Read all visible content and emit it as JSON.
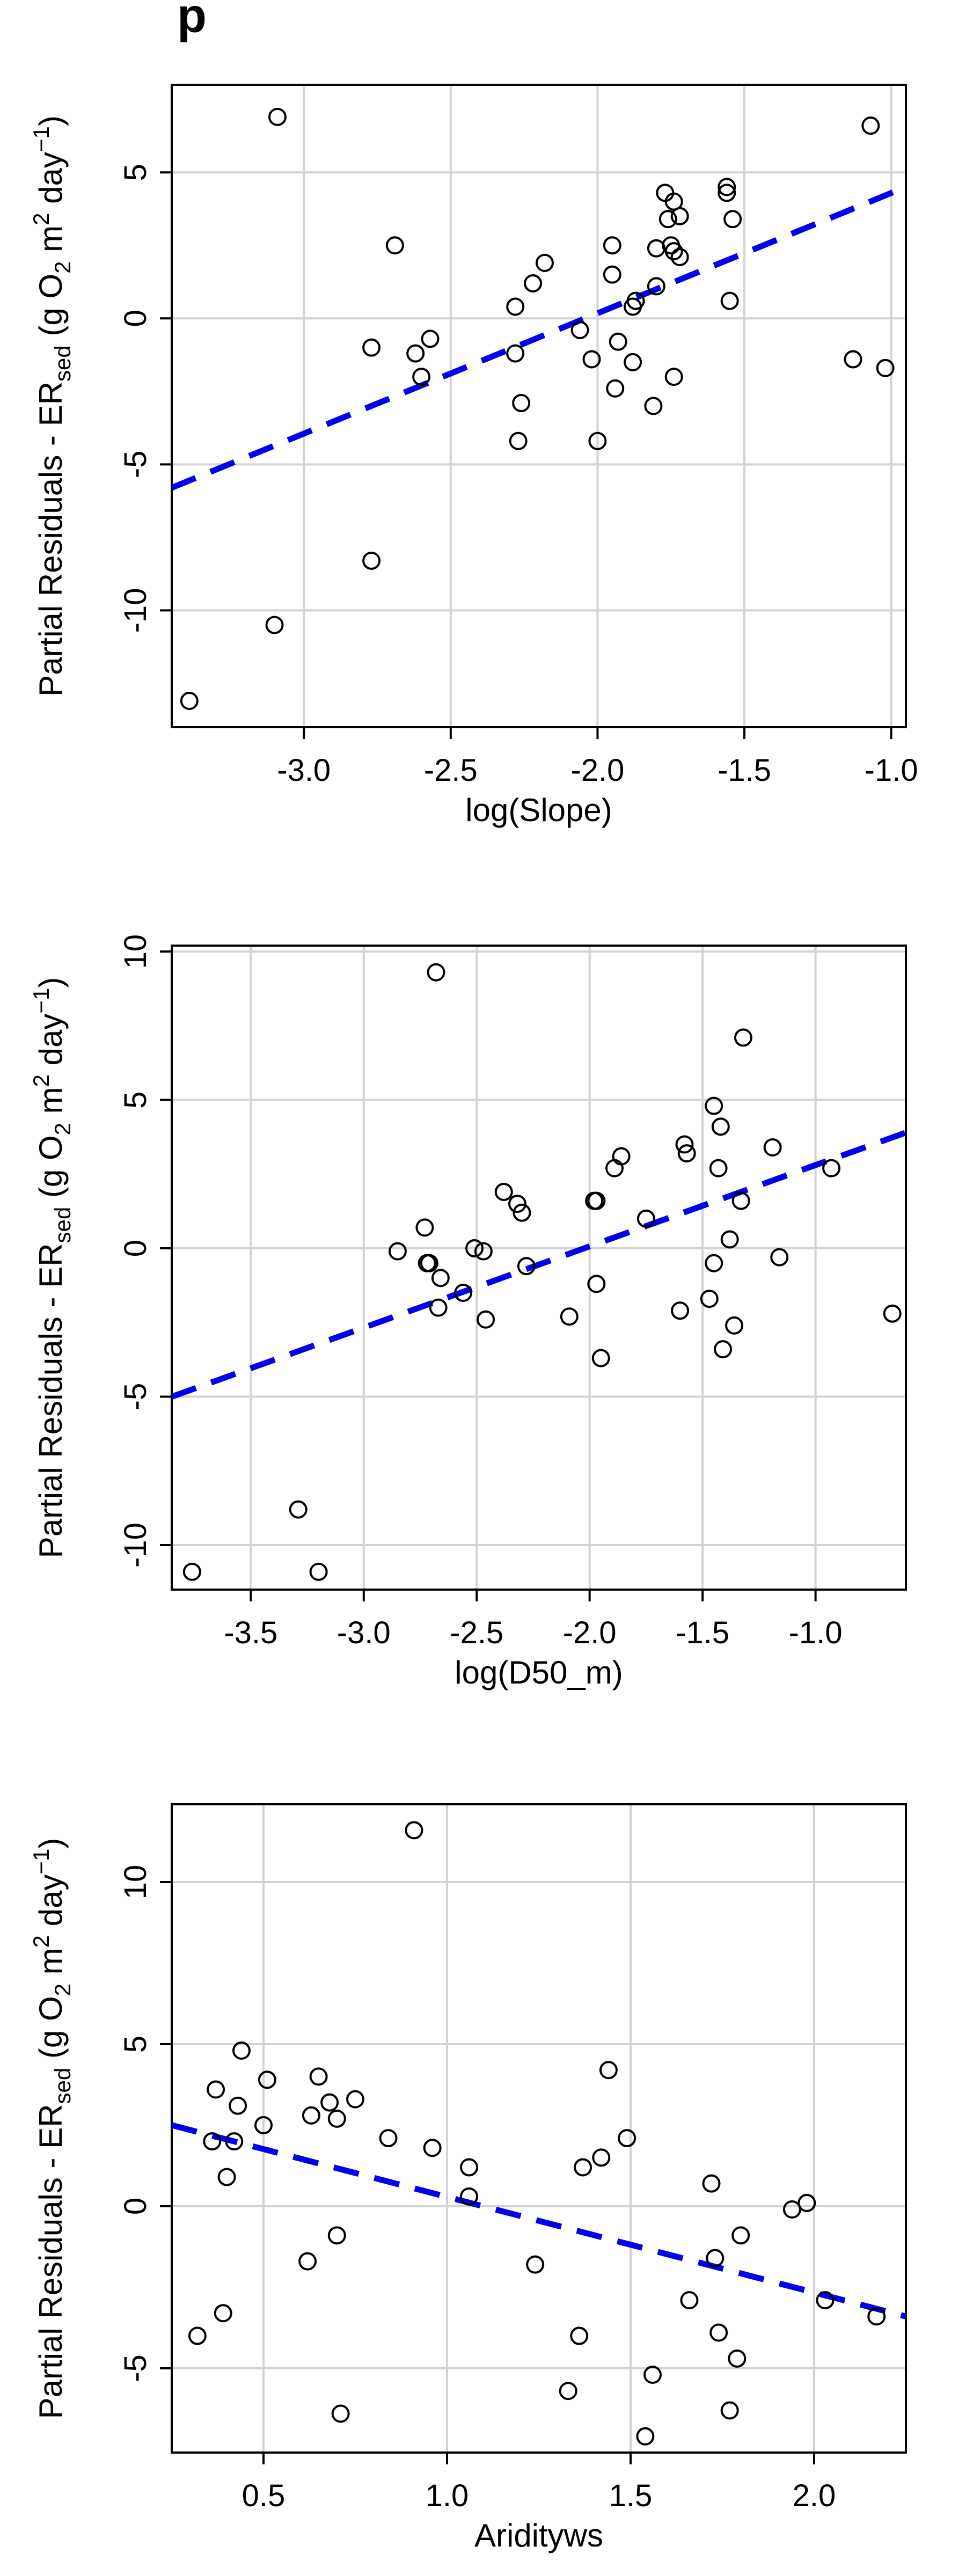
{
  "figure": {
    "title_fragment": "p"
  },
  "chart_data": [
    {
      "type": "scatter",
      "xlabel": "log(Slope)",
      "ylabel": {
        "prefix": "Partial Residuals - ER",
        "subscript": "sed",
        "units": " (g O",
        "o2_sub": "2",
        "m": " m",
        "m_sup": "2",
        "day": " day",
        "day_sup": "−1",
        "close": ")"
      },
      "xlim": [
        -3.45,
        -0.95
      ],
      "ylim": [
        -14,
        8
      ],
      "xticks": [
        -3.0,
        -2.5,
        -2.0,
        -1.5,
        -1.0
      ],
      "xtick_labels": [
        "-3.0",
        "-2.5",
        "-2.0",
        "-1.5",
        "-1.0"
      ],
      "yticks": [
        -10,
        -5,
        0,
        5
      ],
      "ytick_labels": [
        "-10",
        "-5",
        "0",
        "5"
      ],
      "grid": true,
      "points": [
        {
          "x": -3.39,
          "y": -13.1
        },
        {
          "x": -3.09,
          "y": 6.9
        },
        {
          "x": -3.1,
          "y": -10.5
        },
        {
          "x": -2.77,
          "y": -8.3
        },
        {
          "x": -2.77,
          "y": -1.0
        },
        {
          "x": -2.69,
          "y": 2.5
        },
        {
          "x": -2.62,
          "y": -1.2
        },
        {
          "x": -2.6,
          "y": -2.0
        },
        {
          "x": -2.57,
          "y": -0.7
        },
        {
          "x": -2.28,
          "y": 0.4
        },
        {
          "x": -2.28,
          "y": -1.2
        },
        {
          "x": -2.27,
          "y": -4.2
        },
        {
          "x": -2.26,
          "y": -2.9
        },
        {
          "x": -2.22,
          "y": 1.2
        },
        {
          "x": -2.18,
          "y": 1.9
        },
        {
          "x": -2.06,
          "y": -0.4
        },
        {
          "x": -2.02,
          "y": -1.4
        },
        {
          "x": -2.0,
          "y": -4.2
        },
        {
          "x": -1.95,
          "y": 2.5
        },
        {
          "x": -1.95,
          "y": 1.5
        },
        {
          "x": -1.94,
          "y": -2.4
        },
        {
          "x": -1.93,
          "y": -0.8
        },
        {
          "x": -1.88,
          "y": -1.5
        },
        {
          "x": -1.88,
          "y": 0.4
        },
        {
          "x": -1.87,
          "y": 0.6
        },
        {
          "x": -1.81,
          "y": -3.0
        },
        {
          "x": -1.8,
          "y": 1.1
        },
        {
          "x": -1.8,
          "y": 2.4
        },
        {
          "x": -1.77,
          "y": 4.3
        },
        {
          "x": -1.76,
          "y": 3.4
        },
        {
          "x": -1.75,
          "y": 2.5
        },
        {
          "x": -1.74,
          "y": 2.3
        },
        {
          "x": -1.74,
          "y": 4.0
        },
        {
          "x": -1.74,
          "y": -2.0
        },
        {
          "x": -1.72,
          "y": 3.5
        },
        {
          "x": -1.72,
          "y": 2.1
        },
        {
          "x": -1.56,
          "y": 4.5
        },
        {
          "x": -1.56,
          "y": 4.3
        },
        {
          "x": -1.55,
          "y": 0.6
        },
        {
          "x": -1.54,
          "y": 3.4
        },
        {
          "x": -1.13,
          "y": -1.4
        },
        {
          "x": -1.07,
          "y": 6.6
        },
        {
          "x": -1.02,
          "y": -1.7
        }
      ],
      "fit_line": {
        "x": [
          -3.45,
          -0.95
        ],
        "y": [
          -5.8,
          4.5
        ],
        "color": "#0000ee",
        "style": "dashed"
      }
    },
    {
      "type": "scatter",
      "xlabel": "log(D50_m)",
      "ylabel": {
        "prefix": "Partial Residuals - ER",
        "subscript": "sed",
        "units": " (g O",
        "o2_sub": "2",
        "m": " m",
        "m_sup": "2",
        "day": " day",
        "day_sup": "−1",
        "close": ")"
      },
      "xlim": [
        -3.85,
        -0.6
      ],
      "ylim": [
        -11.5,
        10.2
      ],
      "xticks": [
        -3.5,
        -3.0,
        -2.5,
        -2.0,
        -1.5,
        -1.0
      ],
      "xtick_labels": [
        "-3.5",
        "-3.0",
        "-2.5",
        "-2.0",
        "-1.5",
        "-1.0"
      ],
      "yticks": [
        -10,
        -5,
        0,
        5,
        10
      ],
      "ytick_labels": [
        "-10",
        "-5",
        "0",
        "5",
        "10"
      ],
      "grid": true,
      "points": [
        {
          "x": -3.76,
          "y": -10.9
        },
        {
          "x": -3.29,
          "y": -8.8
        },
        {
          "x": -3.2,
          "y": -10.9
        },
        {
          "x": -2.85,
          "y": -0.1
        },
        {
          "x": -2.73,
          "y": 0.7
        },
        {
          "x": -2.72,
          "y": -0.5
        },
        {
          "x": -2.71,
          "y": -0.5
        },
        {
          "x": -2.68,
          "y": 9.3
        },
        {
          "x": -2.67,
          "y": -2.0
        },
        {
          "x": -2.66,
          "y": -1.0
        },
        {
          "x": -2.56,
          "y": -1.5
        },
        {
          "x": -2.51,
          "y": 0.0
        },
        {
          "x": -2.47,
          "y": -0.1
        },
        {
          "x": -2.46,
          "y": -2.4
        },
        {
          "x": -2.38,
          "y": 1.9
        },
        {
          "x": -2.32,
          "y": 1.5
        },
        {
          "x": -2.3,
          "y": 1.2
        },
        {
          "x": -2.28,
          "y": -0.6
        },
        {
          "x": -2.09,
          "y": -2.3
        },
        {
          "x": -1.98,
          "y": 1.6
        },
        {
          "x": -1.97,
          "y": 1.6
        },
        {
          "x": -1.97,
          "y": -1.2
        },
        {
          "x": -1.95,
          "y": -3.7
        },
        {
          "x": -1.89,
          "y": 2.7
        },
        {
          "x": -1.86,
          "y": 3.1
        },
        {
          "x": -1.75,
          "y": 1.0
        },
        {
          "x": -1.6,
          "y": -2.1
        },
        {
          "x": -1.58,
          "y": 3.5
        },
        {
          "x": -1.57,
          "y": 3.2
        },
        {
          "x": -1.47,
          "y": -1.7
        },
        {
          "x": -1.45,
          "y": -0.5
        },
        {
          "x": -1.45,
          "y": 4.8
        },
        {
          "x": -1.43,
          "y": 2.7
        },
        {
          "x": -1.42,
          "y": 4.1
        },
        {
          "x": -1.41,
          "y": -3.4
        },
        {
          "x": -1.38,
          "y": 0.3
        },
        {
          "x": -1.36,
          "y": -2.6
        },
        {
          "x": -1.33,
          "y": 1.6
        },
        {
          "x": -1.32,
          "y": 7.1
        },
        {
          "x": -1.19,
          "y": 3.4
        },
        {
          "x": -1.16,
          "y": -0.3
        },
        {
          "x": -0.93,
          "y": 2.7
        },
        {
          "x": -0.66,
          "y": -2.2
        }
      ],
      "fit_line": {
        "x": [
          -3.85,
          -0.6
        ],
        "y": [
          -5.0,
          3.9
        ],
        "color": "#0000ee",
        "style": "dashed"
      }
    },
    {
      "type": "scatter",
      "xlabel": "Aridityws",
      "ylabel": {
        "prefix": "Partial Residuals - ER",
        "subscript": "sed",
        "units": " (g O",
        "o2_sub": "2",
        "m": " m",
        "m_sup": "2",
        "day": " day",
        "day_sup": "−1",
        "close": ")"
      },
      "xlim": [
        0.25,
        2.25
      ],
      "ylim": [
        -7.6,
        12.4
      ],
      "xticks": [
        0.5,
        1.0,
        1.5,
        2.0
      ],
      "xtick_labels": [
        "0.5",
        "1.0",
        "1.5",
        "2.0"
      ],
      "yticks": [
        -5,
        0,
        5,
        10
      ],
      "ytick_labels": [
        "-5",
        "0",
        "5",
        "10"
      ],
      "grid": true,
      "points": [
        {
          "x": 0.32,
          "y": -4.0
        },
        {
          "x": 0.36,
          "y": 2.0
        },
        {
          "x": 0.37,
          "y": 3.6
        },
        {
          "x": 0.39,
          "y": -3.3
        },
        {
          "x": 0.4,
          "y": 0.9
        },
        {
          "x": 0.42,
          "y": 2.0
        },
        {
          "x": 0.43,
          "y": 3.1
        },
        {
          "x": 0.44,
          "y": 4.8
        },
        {
          "x": 0.5,
          "y": 2.5
        },
        {
          "x": 0.51,
          "y": 3.9
        },
        {
          "x": 0.62,
          "y": -1.7
        },
        {
          "x": 0.63,
          "y": 2.8
        },
        {
          "x": 0.65,
          "y": 4.0
        },
        {
          "x": 0.68,
          "y": 3.2
        },
        {
          "x": 0.7,
          "y": 2.7
        },
        {
          "x": 0.7,
          "y": -0.9
        },
        {
          "x": 0.71,
          "y": -6.4
        },
        {
          "x": 0.75,
          "y": 3.3
        },
        {
          "x": 0.84,
          "y": 2.1
        },
        {
          "x": 0.91,
          "y": 11.6
        },
        {
          "x": 0.96,
          "y": 1.8
        },
        {
          "x": 1.06,
          "y": 1.2
        },
        {
          "x": 1.06,
          "y": 0.3
        },
        {
          "x": 1.24,
          "y": -1.8
        },
        {
          "x": 1.33,
          "y": -5.7
        },
        {
          "x": 1.36,
          "y": -4.0
        },
        {
          "x": 1.37,
          "y": 1.2
        },
        {
          "x": 1.42,
          "y": 1.5
        },
        {
          "x": 1.44,
          "y": 4.2
        },
        {
          "x": 1.49,
          "y": 2.1
        },
        {
          "x": 1.54,
          "y": -7.1
        },
        {
          "x": 1.56,
          "y": -5.2
        },
        {
          "x": 1.66,
          "y": -2.9
        },
        {
          "x": 1.72,
          "y": 0.7
        },
        {
          "x": 1.73,
          "y": -1.6
        },
        {
          "x": 1.74,
          "y": -3.9
        },
        {
          "x": 1.77,
          "y": -6.3
        },
        {
          "x": 1.79,
          "y": -4.7
        },
        {
          "x": 1.8,
          "y": -0.9
        },
        {
          "x": 1.94,
          "y": -0.1
        },
        {
          "x": 1.98,
          "y": 0.1
        },
        {
          "x": 2.03,
          "y": -2.9
        },
        {
          "x": 2.17,
          "y": -3.4
        }
      ],
      "fit_line": {
        "x": [
          0.25,
          2.25
        ],
        "y": [
          2.5,
          -3.4
        ],
        "color": "#0000ee",
        "style": "dashed"
      }
    }
  ]
}
